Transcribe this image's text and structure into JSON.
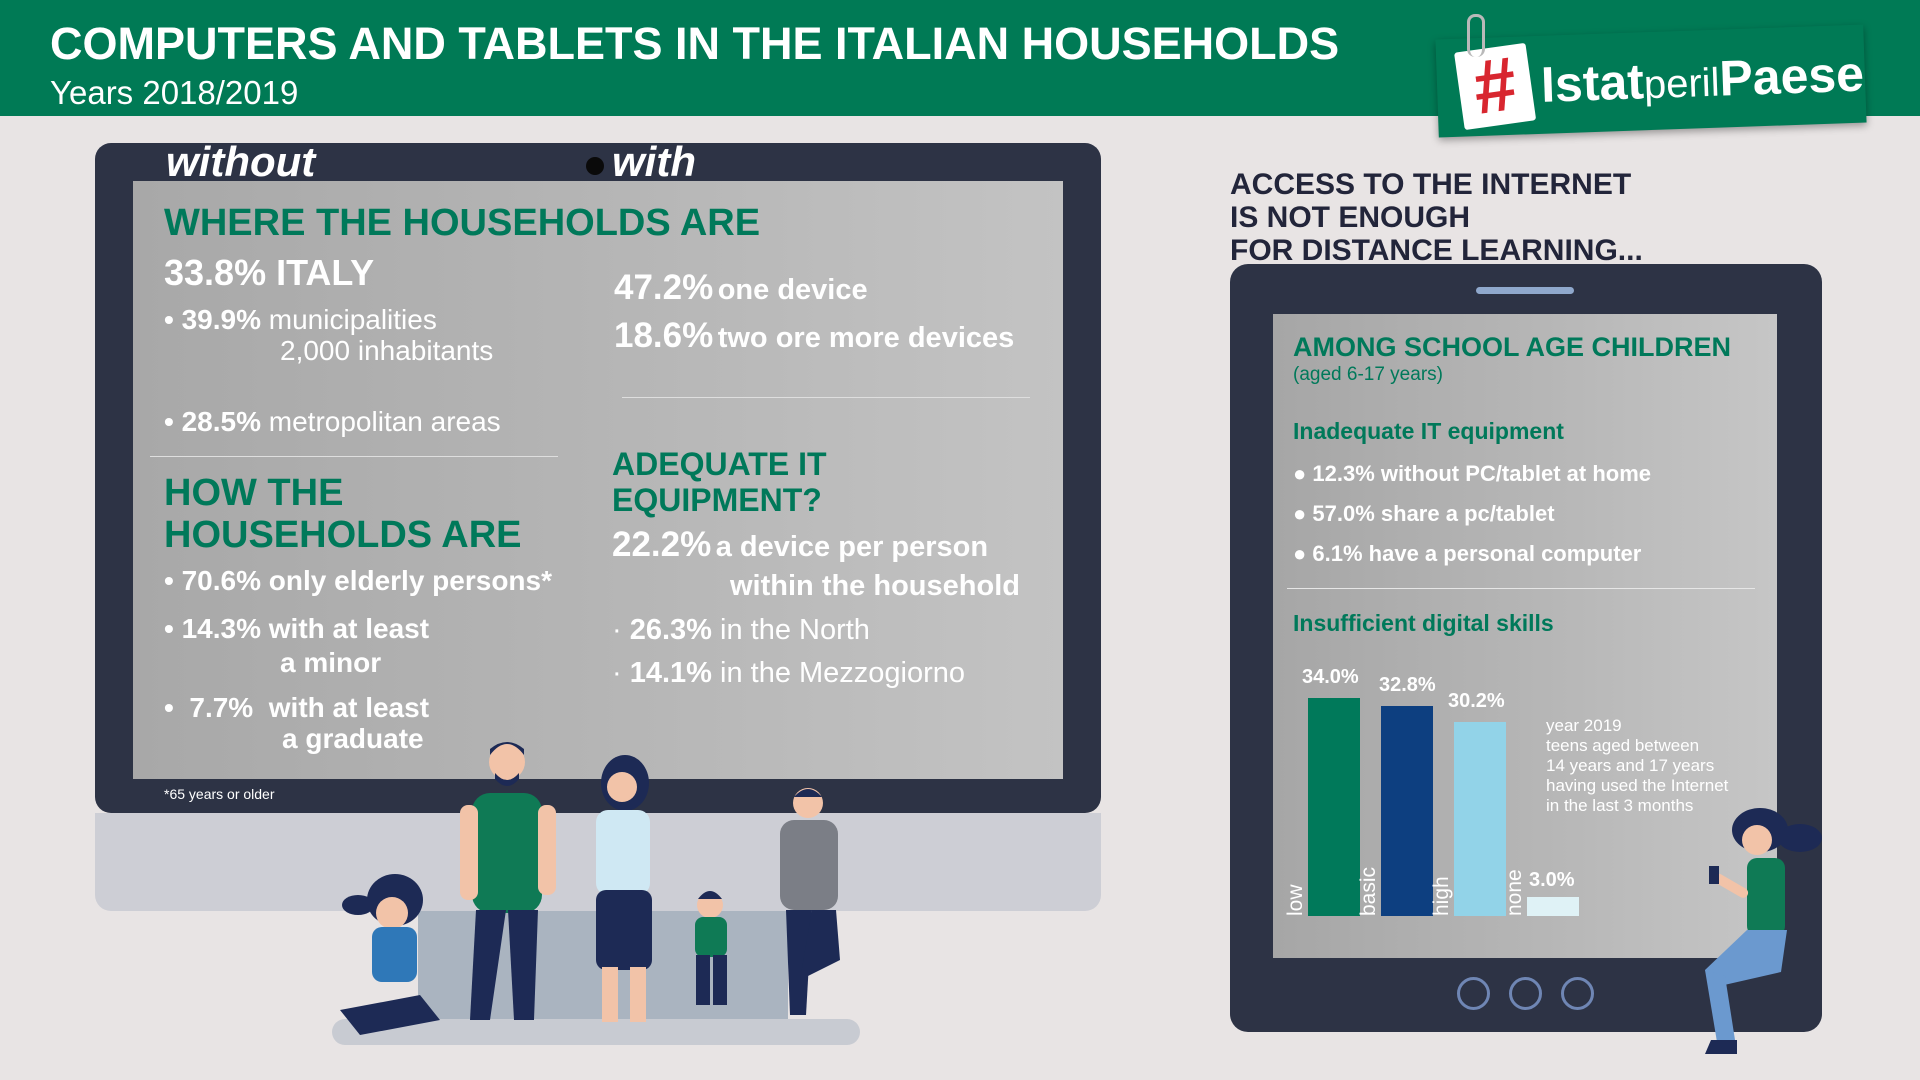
{
  "header": {
    "title": "COMPUTERS AND TABLETS IN THE ITALIAN HOUSEHOLDS",
    "subtitle": "Years 2018/2019",
    "logo_hash": "#",
    "logo_part1": "Istat",
    "logo_part2": "peril",
    "logo_part3": "Paese"
  },
  "monitor": {
    "without_label": "without",
    "with_label": "with",
    "where": {
      "heading": "WHERE THE HOUSEHOLDS ARE",
      "italy_value": "33.8%",
      "italy_label": "ITALY",
      "municipalities_value": "39.9%",
      "municipalities_label_1": "municipalities",
      "municipalities_label_2": "2,000 inhabitants",
      "metro_value": "28.5%",
      "metro_label": "metropolitan areas"
    },
    "how": {
      "heading_1": "HOW THE",
      "heading_2": "HOUSEHOLDS ARE",
      "elderly_value": "70.6%",
      "elderly_label": "only elderly persons*",
      "minor_value": "14.3%",
      "minor_label_1": "with at least",
      "minor_label_2": "a minor",
      "graduate_value": "7.7%",
      "graduate_label_1": "with at least",
      "graduate_label_2": "a graduate"
    },
    "devices": {
      "one_value": "47.2%",
      "one_label": "one device",
      "two_value": "18.6%",
      "two_label": "two ore more devices"
    },
    "adequate": {
      "heading_1": "ADEQUATE IT",
      "heading_2": "EQUIPMENT?",
      "device_value": "22.2%",
      "device_label_1": "a device per person",
      "device_label_2": "within the household",
      "north_value": "26.3%",
      "north_label": "in the North",
      "south_value": "14.1%",
      "south_label": "in the Mezzogiorno"
    },
    "footnote": "*65 years or older"
  },
  "tablet": {
    "access_title_1": "ACCESS TO THE INTERNET",
    "access_title_2": "IS NOT ENOUGH",
    "access_title_3": "FOR DISTANCE LEARNING...",
    "among_heading": "AMONG SCHOOL AGE CHILDREN",
    "among_sub": "(aged 6-17 years)",
    "inadequate_heading": "Inadequate IT equipment",
    "items": [
      "12.3% without PC/tablet at home",
      "57.0% share a pc/tablet",
      "6.1% have a personal computer"
    ],
    "skills_heading": "Insufficient digital skills",
    "note_1": "year 2019",
    "note_2": "teens aged between",
    "note_3": "14 years and 17 years",
    "note_4": "having used the Internet",
    "note_5": "in the last 3 months"
  },
  "chart_data": {
    "type": "bar",
    "title": "Insufficient digital skills",
    "categories": [
      "low",
      "basic",
      "high",
      "none"
    ],
    "values": [
      34.0,
      32.8,
      30.2,
      3.0
    ],
    "value_labels": [
      "34.0%",
      "32.8%",
      "30.2%",
      "3.0%"
    ],
    "colors": [
      "#00795a",
      "#0d3f80",
      "#92d3e8",
      "#dff2f6"
    ],
    "ylim": [
      0,
      34.0
    ],
    "grid": false
  },
  "colors": {
    "brand_green": "#007a55",
    "frame_dark": "#2d3345",
    "logo_red": "#d8262f"
  }
}
